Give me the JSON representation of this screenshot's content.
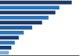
{
  "chart_data": {
    "type": "bar",
    "orientation": "horizontal",
    "categories": [
      null,
      null,
      null,
      null,
      null,
      null,
      null,
      null,
      null,
      null,
      null
    ],
    "values": [
      14.5,
      12.0,
      11.2,
      9.8,
      8.5,
      6.5,
      4.8,
      3.8,
      3.0,
      2.3,
      1.8
    ],
    "colors": [
      "#1a3a6b",
      "#2e75b6",
      "#1a3a6b",
      "#2e75b6",
      "#1a3a6b",
      "#1f5c99",
      "#2e75b6",
      "#1a3a6b",
      "#2e75b6",
      "#1a3a6b",
      "#7ab0d4"
    ],
    "xlim": [
      0,
      16
    ],
    "grid": false,
    "tick_labels": false
  }
}
